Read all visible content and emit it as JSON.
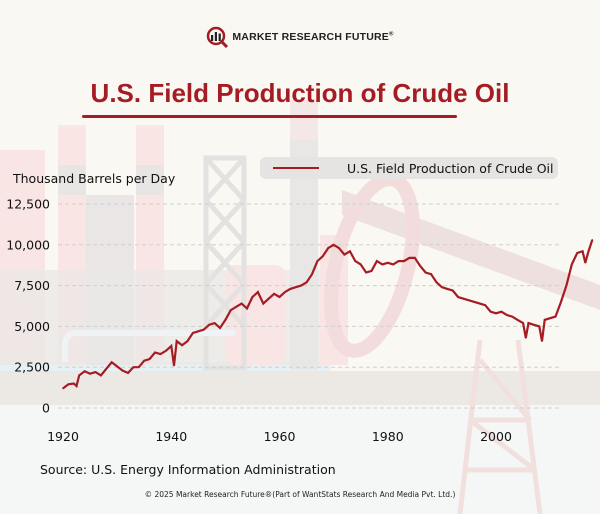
{
  "brand": {
    "name": "MARKET RESEARCH FUTURE",
    "registered": "®",
    "colors": {
      "primary": "#a51c24",
      "dark": "#222222"
    }
  },
  "copyright": "© 2025 Market Research Future®(Part of WantStats Research And Media Pvt. Ltd.)",
  "chart_data": {
    "type": "line",
    "title": "U.S. Field Production of Crude Oil",
    "xlabel": "",
    "ylabel": "Thousand Barrels per Day",
    "source": "Source: U.S. Energy Information Administration",
    "xlim": [
      1919,
      2018
    ],
    "ylim": [
      0,
      12500
    ],
    "x_ticks": [
      1920,
      1940,
      1960,
      1980,
      2000
    ],
    "x_tick_labels": [
      "1920",
      "1940",
      "1960",
      "1980",
      "2000"
    ],
    "y_ticks": [
      0,
      2500,
      5000,
      7500,
      10000,
      12500
    ],
    "y_tick_labels": [
      "0",
      "2,500",
      "5,000",
      "7,500",
      "10,000",
      "12,500"
    ],
    "grid": "horizontal-dashed",
    "legend": {
      "position": "top-right",
      "entries": [
        "U.S. Field Production of Crude Oil"
      ]
    },
    "series": [
      {
        "name": "U.S. Field Production of Crude Oil",
        "color": "#a51c24",
        "x": [
          1920,
          1921,
          1922,
          1922.5,
          1923,
          1924,
          1925,
          1926,
          1927,
          1928,
          1929,
          1930,
          1931,
          1932,
          1933,
          1934,
          1935,
          1936,
          1937,
          1938,
          1939,
          1940,
          1940.5,
          1941,
          1942,
          1943,
          1944,
          1945,
          1946,
          1947,
          1948,
          1949,
          1950,
          1951,
          1952,
          1953,
          1954,
          1955,
          1956,
          1957,
          1958,
          1959,
          1960,
          1961,
          1962,
          1963,
          1964,
          1965,
          1966,
          1967,
          1968,
          1969,
          1970,
          1971,
          1972,
          1973,
          1974,
          1975,
          1976,
          1977,
          1978,
          1979,
          1980,
          1981,
          1982,
          1983,
          1984,
          1985,
          1986,
          1987,
          1988,
          1989,
          1990,
          1991,
          1992,
          1993,
          1994,
          1995,
          1996,
          1997,
          1998,
          1999,
          2000,
          2001,
          2002,
          2003,
          2004,
          2005,
          2005.5,
          2006,
          2007,
          2008,
          2008.5,
          2009,
          2010,
          2011,
          2012,
          2013,
          2014,
          2015,
          2016,
          2016.5,
          2017,
          2017.8
        ],
        "values": [
          1200,
          1450,
          1500,
          1350,
          2000,
          2250,
          2100,
          2200,
          2000,
          2400,
          2800,
          2550,
          2300,
          2150,
          2500,
          2500,
          2900,
          3000,
          3400,
          3300,
          3500,
          3800,
          2600,
          4100,
          3850,
          4100,
          4600,
          4700,
          4800,
          5100,
          5200,
          4900,
          5400,
          6000,
          6200,
          6400,
          6100,
          6800,
          7100,
          6400,
          6700,
          7000,
          6800,
          7100,
          7300,
          7400,
          7500,
          7700,
          8200,
          9000,
          9300,
          9800,
          10000,
          9800,
          9400,
          9600,
          9000,
          8800,
          8300,
          8400,
          9000,
          8800,
          8900,
          8800,
          9000,
          9000,
          9200,
          9200,
          8700,
          8300,
          8200,
          7700,
          7400,
          7300,
          7200,
          6800,
          6700,
          6600,
          6500,
          6400,
          6300,
          5900,
          5800,
          5900,
          5700,
          5600,
          5400,
          5200,
          4300,
          5200,
          5100,
          5000,
          4100,
          5400,
          5500,
          5600,
          6500,
          7500,
          8800,
          9500,
          9600,
          8900,
          9500,
          10300
        ]
      }
    ]
  }
}
